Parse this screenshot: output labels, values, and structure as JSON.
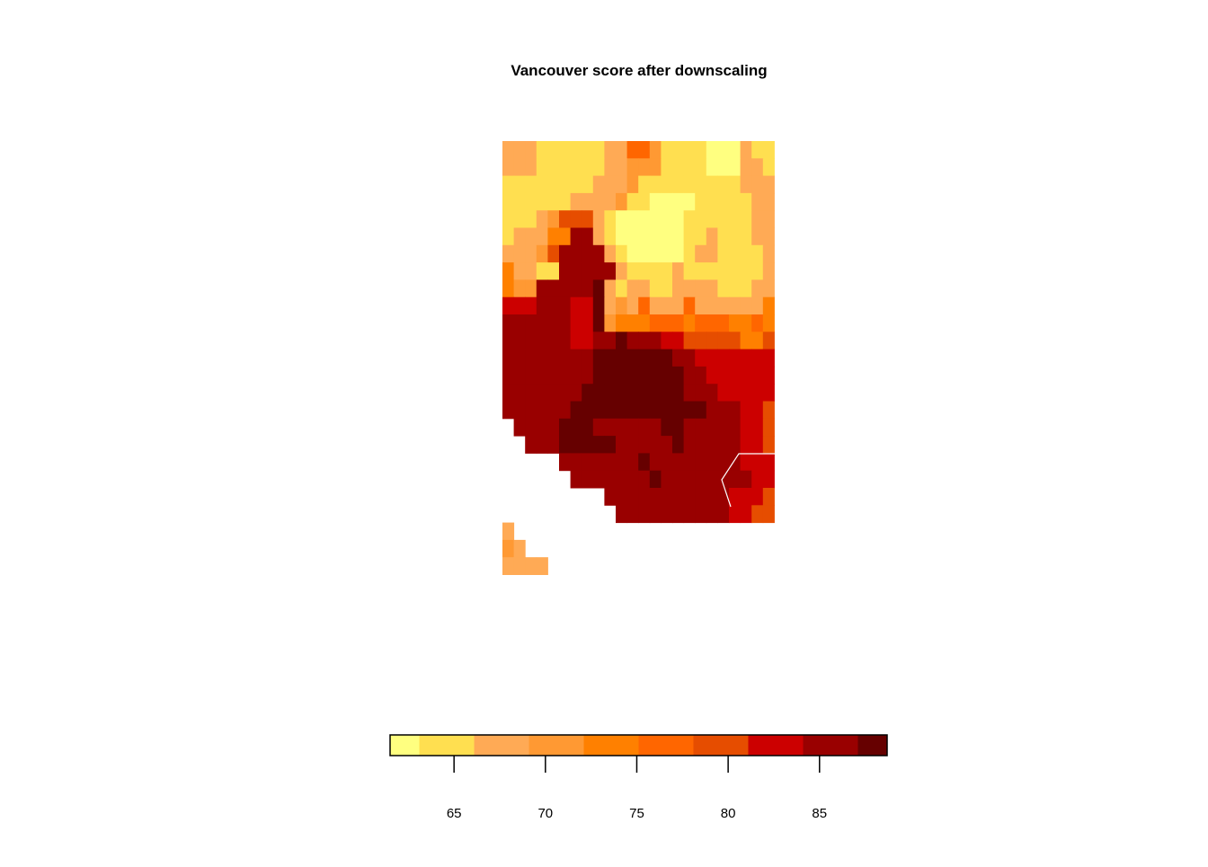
{
  "chart_data": {
    "type": "heatmap",
    "title": "Vancouver score after downscaling",
    "xlabel": "",
    "ylabel": "",
    "color_scale": {
      "breaks": [
        61.5,
        63.1,
        66.1,
        69.1,
        72.1,
        75.1,
        78.1,
        81.1,
        84.1,
        87.1,
        88.7
      ],
      "colors": [
        "#ffff80",
        "#ffdf50",
        "#ffaa55",
        "#ff9933",
        "#ff8000",
        "#ff6600",
        "#e64d00",
        "#cc0000",
        "#990000",
        "#660000"
      ],
      "ticks": [
        65,
        70,
        75,
        80,
        85
      ],
      "tick_labels": [
        "65",
        "70",
        "75",
        "80",
        "85"
      ]
    },
    "grid": {
      "ncol": 24,
      "nrow": 25,
      "code_values": {
        "a": 62,
        "b": 64.5,
        "c": 67.5,
        "d": 70.5,
        "e": 73.5,
        "f": 76.5,
        "g": 79.5,
        "h": 82.5,
        "i": 85.5,
        "j": 88
      },
      "rows": [
        "cccbbbbbbccffdbbbbaaacbb",
        "cccbbbbbbccdddbbbbaaaccb",
        "bbbbbbbbcccdbbbbbbbbbccc",
        "bbbbbbccccdbbaaaabbbbbcc",
        "bbbcdgggcbaaaaaabbbbbbcc",
        "bccceeiicbaaaaaabbcbbbcc",
        "cccdgiiiicbaaaaabccbbbbc",
        "eccbbiiiiicbbbbcbbbbbbbc",
        "eddiiiiijcbccbbccccbbbcc",
        "hhhiiihhjcdcfcccfcccccce",
        "iiiiiihhjdeeefffefffeefe",
        "iiiiiihhiijiiihhgggggeeg",
        "iiiiiiiijjjjjjjiihhhhhhh",
        "iiiiiiiijjjjjjjjiihhhhhh",
        "iiiiiiijjjjjjjjjiiihhhhh",
        "iiiiiijjjjjjjjjjjjiiihhg",
        "_iiiijjjiiiiiijjiiiiihhg",
        "__iiijjjjjiiiiijiiiiihhg",
        "_____iiiiiiijiiiiiiiihhh",
        "______iiiiiiijiiiiiiiihh",
        "_________iiiiiiiiiiihhhg",
        "__________iiiiiiiiiihhgg",
        "c_______________________",
        "dc______________________",
        "cccc____________________"
      ]
    }
  }
}
